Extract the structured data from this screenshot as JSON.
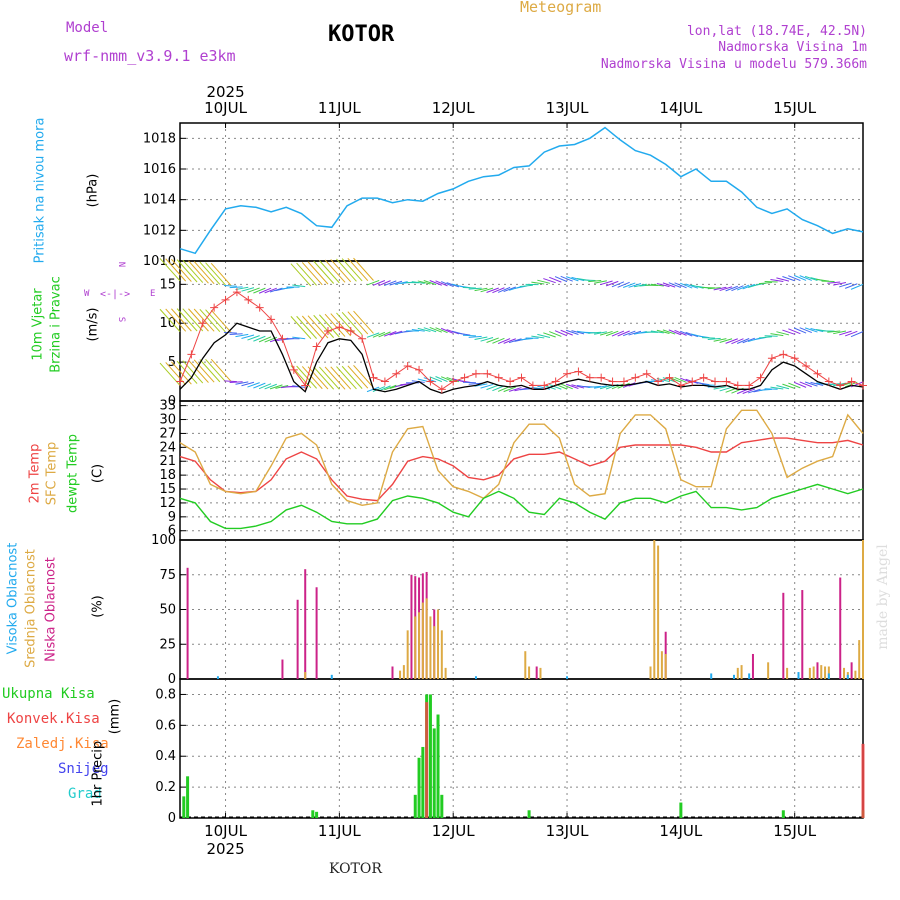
{
  "header": {
    "model_label": "Model",
    "model_name": "wrf-nmm_v3.9.1 e3km",
    "title": "KOTOR",
    "meteogram_label": "Meteogram",
    "lonlat": "lon,lat (18.74E, 42.5N)",
    "elevation": "Nadmorska Visina 1m",
    "model_elevation": "Nadmorska Visina u modelu 579.366m"
  },
  "footer": {
    "station": "KOTOR",
    "credit": "made by Angel"
  },
  "colors": {
    "pressure": "#22aaee",
    "wind_speed": "#000000",
    "gust": "#ee4444",
    "temp2m": "#ee4444",
    "sfc_temp": "#ddaa44",
    "dewpoint": "#22cc22",
    "high_cloud": "#22aaee",
    "mid_cloud": "#ddaa44",
    "low_cloud": "#cc2288",
    "total_rain": "#22cc22",
    "conv_rain": "#ee4444",
    "frozen": "#ff8833",
    "snow": "#4444ee",
    "hail": "#22cccc",
    "purple": "#b040d0"
  },
  "chart_data": [
    {
      "type": "line",
      "panel": "pressure",
      "ylabel_main": "Pritisak na nivou mora",
      "ylabel_unit": "(hPa)",
      "ylim": [
        1010,
        1019
      ],
      "yticks": [
        1010,
        1012,
        1014,
        1016,
        1018
      ],
      "x_unit": "hours from 2025-07-09 12:00",
      "x": [
        0,
        4,
        8,
        12,
        16,
        20,
        24,
        28,
        32,
        36,
        40,
        44,
        48,
        52,
        56,
        60,
        64,
        68,
        72,
        76,
        80,
        84,
        88,
        92,
        96,
        100,
        104,
        108,
        112,
        116,
        120,
        124,
        128,
        132,
        136,
        140,
        144,
        148,
        152,
        156,
        160,
        164,
        168,
        172,
        176,
        180
      ],
      "values": [
        1010.8,
        1010.5,
        1012.0,
        1013.4,
        1013.6,
        1013.5,
        1013.2,
        1013.5,
        1013.1,
        1012.3,
        1012.2,
        1013.6,
        1014.1,
        1014.1,
        1013.8,
        1014.0,
        1013.9,
        1014.4,
        1014.7,
        1015.2,
        1015.5,
        1015.6,
        1016.1,
        1016.2,
        1017.1,
        1017.5,
        1017.6,
        1018.0,
        1018.7,
        1017.9,
        1017.2,
        1016.9,
        1016.3,
        1015.5,
        1016.0,
        1015.2,
        1015.2,
        1014.5,
        1013.5,
        1013.1,
        1013.4,
        1012.7,
        1012.3,
        1011.8,
        1012.1,
        1011.9
      ]
    },
    {
      "type": "line",
      "panel": "wind",
      "ylabel_main": "10m Vjetar",
      "ylabel_sub": "Brzina i Pravac",
      "ylabel_unit": "(m/s)",
      "compass": {
        "n": "N",
        "s": "S",
        "w": "W",
        "e": "E"
      },
      "ylim": [
        0,
        18
      ],
      "yticks": [
        0,
        5,
        10,
        15
      ],
      "x": [
        0,
        3,
        6,
        9,
        12,
        15,
        18,
        21,
        24,
        27,
        30,
        33,
        36,
        39,
        42,
        45,
        48,
        51,
        54,
        57,
        60,
        63,
        66,
        69,
        72,
        75,
        78,
        81,
        84,
        87,
        90,
        93,
        96,
        99,
        102,
        105,
        108,
        111,
        114,
        117,
        120,
        123,
        126,
        129,
        132,
        135,
        138,
        141,
        144,
        147,
        150,
        153,
        156,
        159,
        162,
        165,
        168,
        171,
        174,
        177,
        180
      ],
      "series": [
        {
          "name": "wind speed",
          "values": [
            1.5,
            3.0,
            5.5,
            7.5,
            8.5,
            10.0,
            9.5,
            9.0,
            9.0,
            6.0,
            2.5,
            1.2,
            5.0,
            7.5,
            8.0,
            7.8,
            6.0,
            1.5,
            1.2,
            1.5,
            2.0,
            2.5,
            1.5,
            1.0,
            1.5,
            1.8,
            2.0,
            2.5,
            2.0,
            1.8,
            2.0,
            1.5,
            1.5,
            2.0,
            2.5,
            2.8,
            2.5,
            2.2,
            2.0,
            2.0,
            2.2,
            2.5,
            2.0,
            2.2,
            1.8,
            2.0,
            2.0,
            1.8,
            2.0,
            1.5,
            1.5,
            2.0,
            4.0,
            5.0,
            4.5,
            3.5,
            2.5,
            2.0,
            1.5,
            2.0,
            1.8
          ]
        },
        {
          "name": "gust",
          "values": [
            2.5,
            6.0,
            10.0,
            12.0,
            13.0,
            14.0,
            13.0,
            12.0,
            10.5,
            8.0,
            4.0,
            2.0,
            7.0,
            9.0,
            9.5,
            9.0,
            8.0,
            3.0,
            2.5,
            3.5,
            4.5,
            4.0,
            2.5,
            1.5,
            2.5,
            3.0,
            3.5,
            3.5,
            3.0,
            2.5,
            3.0,
            2.0,
            2.0,
            2.5,
            3.5,
            3.8,
            3.0,
            3.0,
            2.5,
            2.5,
            3.0,
            3.5,
            2.5,
            3.0,
            2.0,
            2.5,
            3.0,
            2.5,
            2.5,
            2.0,
            2.0,
            3.0,
            5.5,
            6.0,
            5.5,
            4.5,
            3.5,
            2.5,
            2.0,
            2.5,
            2.0
          ]
        }
      ]
    },
    {
      "type": "line",
      "panel": "temperature",
      "ylabel_main": "2m Temp",
      "ylabel_mid": "SFC Temp",
      "ylabel_sub": "dewpt Temp",
      "ylabel_unit": "(C)",
      "ylim": [
        4,
        34
      ],
      "yticks": [
        6,
        9,
        12,
        15,
        18,
        21,
        24,
        27,
        30,
        33
      ],
      "x": [
        0,
        4,
        8,
        12,
        16,
        20,
        24,
        28,
        32,
        36,
        40,
        44,
        48,
        52,
        56,
        60,
        64,
        68,
        72,
        76,
        80,
        84,
        88,
        92,
        96,
        100,
        104,
        108,
        112,
        116,
        120,
        124,
        128,
        132,
        136,
        140,
        144,
        148,
        152,
        156,
        160,
        164,
        168,
        172,
        176,
        180
      ],
      "series": [
        {
          "name": "2m Temp",
          "values": [
            22,
            21,
            17,
            14.5,
            14.2,
            14.5,
            17,
            21.5,
            23,
            21.5,
            17,
            13.5,
            12.8,
            12.5,
            16,
            21,
            22,
            21.5,
            20,
            17.5,
            17,
            18,
            21.5,
            22.5,
            22.5,
            23,
            21.5,
            20,
            21,
            24,
            24.5,
            24.5,
            24.5,
            24.5,
            24,
            23,
            23,
            25,
            25.5,
            26,
            26,
            25.5,
            25,
            25,
            25.5,
            24.5
          ]
        },
        {
          "name": "SFC Temp",
          "values": [
            25,
            23,
            16,
            14.5,
            14,
            14.5,
            20,
            26,
            27,
            24.5,
            16,
            12.5,
            11.5,
            12,
            23,
            28,
            28.5,
            19,
            15.5,
            14.5,
            13,
            16,
            25,
            29,
            29,
            26,
            16,
            13.5,
            14,
            27,
            31,
            31,
            28,
            17,
            15.5,
            15.5,
            28,
            32,
            32,
            27,
            17.5,
            19.5,
            21,
            22,
            31,
            27
          ]
        },
        {
          "name": "dewpt Temp",
          "values": [
            13,
            12,
            8,
            6.5,
            6.5,
            7,
            8,
            10.5,
            11.5,
            10,
            8,
            7.5,
            7.5,
            8.5,
            12.5,
            13.5,
            13,
            12,
            10,
            9,
            13,
            14.5,
            13,
            10,
            9.5,
            13,
            12,
            10,
            8.5,
            12,
            13,
            13,
            12,
            13.5,
            14.5,
            11,
            11,
            10.5,
            11,
            13,
            14,
            15,
            16,
            15,
            14,
            15
          ]
        }
      ]
    },
    {
      "type": "bar",
      "panel": "cloud",
      "ylabel_high": "Visoka Oblacnost",
      "ylabel_mid": "Srednja Oblacnost",
      "ylabel_low": "Niska Oblacnost",
      "ylabel_unit": "(%)",
      "ylim": [
        0,
        100
      ],
      "yticks": [
        0,
        25,
        50,
        75,
        100
      ],
      "series": [
        {
          "name": "low",
          "x": [
            2,
            27,
            31,
            33,
            36,
            56,
            61,
            62,
            63,
            64,
            65,
            67,
            94,
            128,
            151,
            159,
            164,
            168,
            174,
            177
          ],
          "values": [
            80,
            14,
            57,
            79,
            66,
            9,
            75,
            74,
            73,
            76,
            77,
            50,
            9,
            34,
            18,
            62,
            64,
            12,
            73,
            12
          ]
        },
        {
          "name": "mid",
          "x": [
            33,
            58,
            59,
            60,
            62,
            63,
            64,
            65,
            66,
            67,
            68,
            69,
            70,
            91,
            92,
            95,
            124,
            125,
            126,
            127,
            128,
            147,
            148,
            155,
            160,
            166,
            167,
            169,
            170,
            171,
            175,
            176,
            178,
            179,
            180
          ],
          "values": [
            5,
            6,
            10,
            35,
            45,
            48,
            55,
            58,
            45,
            38,
            50,
            35,
            8,
            20,
            9,
            8,
            9,
            100,
            96,
            20,
            18,
            8,
            10,
            12,
            8,
            8,
            9,
            10,
            9,
            9,
            8,
            5,
            6,
            28,
            100
          ]
        },
        {
          "name": "high",
          "x": [
            10,
            40,
            78,
            102,
            140,
            146,
            150,
            163,
            171,
            176
          ],
          "values": [
            2,
            3,
            2,
            2,
            4,
            3,
            4,
            5,
            4,
            3
          ]
        }
      ]
    },
    {
      "type": "bar",
      "panel": "precip",
      "ylabel_main": "1hr Precip",
      "ylabel_unit": "(mm)",
      "legend": [
        "Ukupna Kisa",
        "Konvek.Kisa",
        "Zaledj.Kisa",
        "Snijeg",
        "Grad"
      ],
      "ylim": [
        0,
        0.9
      ],
      "yticks": [
        0,
        0.2,
        0.4,
        0.6,
        0.8
      ],
      "series": [
        {
          "name": "Ukupna Kisa",
          "x": [
            1,
            2,
            35,
            36,
            62,
            63,
            64,
            65,
            66,
            67,
            68,
            69,
            92,
            132,
            159,
            180
          ],
          "values": [
            0.14,
            0.27,
            0.05,
            0.04,
            0.15,
            0.39,
            0.46,
            0.8,
            0.8,
            0.58,
            0.67,
            0.15,
            0.05,
            0.1,
            0.05,
            0.05
          ]
        },
        {
          "name": "Konvek.Kisa",
          "x": [
            65,
            180
          ],
          "values": [
            0.75,
            0.48
          ]
        }
      ]
    }
  ],
  "x_axis": {
    "year": "2025",
    "date_labels": [
      "10JUL",
      "11JUL",
      "12JUL",
      "13JUL",
      "14JUL",
      "15JUL"
    ],
    "date_hours": [
      12,
      42,
      72,
      102,
      132,
      162
    ],
    "x_range_hours": [
      0,
      180
    ]
  }
}
